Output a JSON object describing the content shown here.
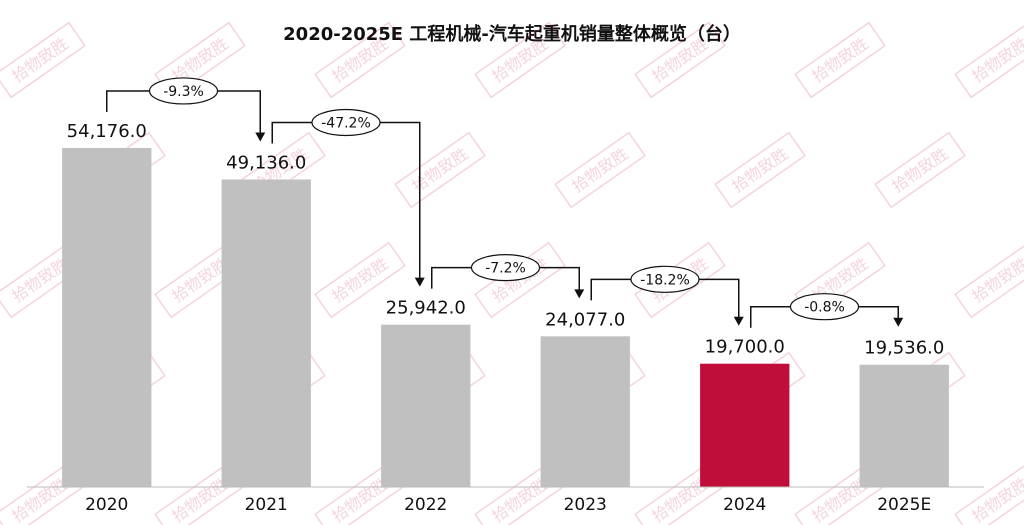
{
  "chart_data": {
    "type": "bar",
    "title": "2020-2025E 工程机械-汽车起重机销量整体概览（台）",
    "categories": [
      "2020",
      "2021",
      "2022",
      "2023",
      "2024",
      "2025E"
    ],
    "values": [
      54176.0,
      49136.0,
      25942.0,
      24077.0,
      19700.0,
      19536.0
    ],
    "value_labels": [
      "54,176.0",
      "49,136.0",
      "25,942.0",
      "24,077.0",
      "19,700.0",
      "19,536.0"
    ],
    "colors": [
      "#c0c0c0",
      "#c0c0c0",
      "#c0c0c0",
      "#c0c0c0",
      "#c00d3a",
      "#c0c0c0"
    ],
    "change_labels": [
      "-9.3%",
      "-47.2%",
      "-7.2%",
      "-18.2%",
      "-0.8%"
    ],
    "watermark": "拾物致胜",
    "ylim": [
      0,
      60000
    ]
  }
}
